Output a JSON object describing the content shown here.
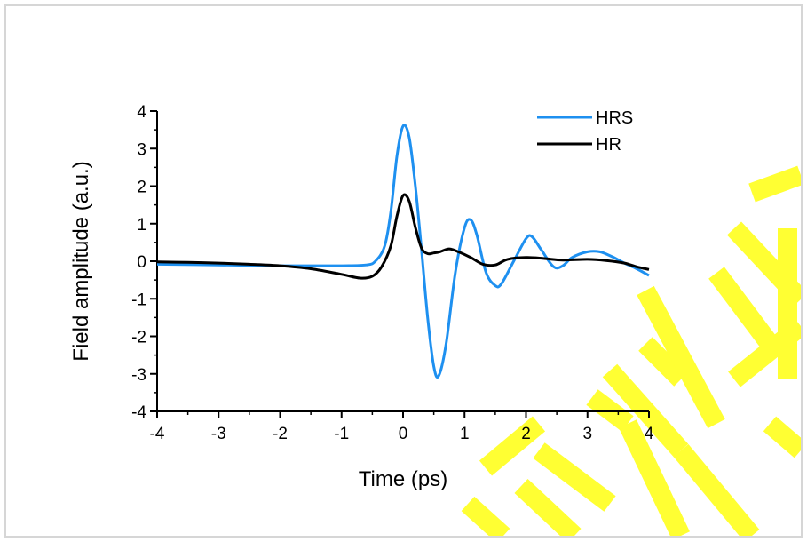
{
  "colors": {
    "HRS": "#1e90f0",
    "HR": "#000000",
    "watermark": "#ffff33"
  },
  "chart_data": {
    "type": "line",
    "title": "",
    "xlabel": "Time (ps)",
    "ylabel": "Field amplitude (a.u.)",
    "xlim": [
      -4,
      4
    ],
    "ylim": [
      -4,
      4
    ],
    "xticks": [
      "-4",
      "-3",
      "-2",
      "-1",
      "0",
      "1",
      "2",
      "3",
      "4"
    ],
    "yticks": [
      "-4",
      "-3",
      "-2",
      "-1",
      "0",
      "1",
      "2",
      "3",
      "4"
    ],
    "grid": false,
    "legend_position": "top-right",
    "series": [
      {
        "name": "HRS",
        "color": "#1e90f0",
        "x": [
          -4,
          -3,
          -2,
          -1.5,
          -1,
          -0.6,
          -0.45,
          -0.3,
          -0.2,
          -0.1,
          0,
          0.1,
          0.2,
          0.3,
          0.4,
          0.5,
          0.58,
          0.7,
          0.85,
          1.0,
          1.1,
          1.2,
          1.35,
          1.5,
          1.6,
          1.8,
          2.0,
          2.1,
          2.25,
          2.45,
          2.6,
          2.75,
          3.0,
          3.2,
          3.4,
          3.6,
          3.8,
          4.0
        ],
        "y": [
          -0.08,
          -0.1,
          -0.12,
          -0.12,
          -0.12,
          -0.1,
          0.0,
          0.4,
          1.3,
          2.8,
          3.6,
          3.3,
          2.0,
          0.3,
          -1.5,
          -2.8,
          -3.05,
          -2.2,
          -0.3,
          0.9,
          1.1,
          0.7,
          -0.3,
          -0.65,
          -0.6,
          0.0,
          0.6,
          0.65,
          0.3,
          -0.15,
          -0.12,
          0.1,
          0.25,
          0.25,
          0.12,
          -0.05,
          -0.2,
          -0.38
        ]
      },
      {
        "name": "HR",
        "color": "#000000",
        "x": [
          -4,
          -3.5,
          -3,
          -2.5,
          -2,
          -1.5,
          -1,
          -0.7,
          -0.5,
          -0.35,
          -0.2,
          -0.1,
          0,
          0.1,
          0.2,
          0.3,
          0.4,
          0.5,
          0.6,
          0.75,
          0.9,
          1.1,
          1.3,
          1.5,
          1.7,
          2.0,
          2.3,
          2.6,
          3.0,
          3.3,
          3.6,
          3.8,
          4.0
        ],
        "y": [
          -0.02,
          -0.03,
          -0.05,
          -0.08,
          -0.12,
          -0.2,
          -0.35,
          -0.45,
          -0.4,
          -0.15,
          0.4,
          1.2,
          1.75,
          1.6,
          0.9,
          0.35,
          0.2,
          0.22,
          0.25,
          0.33,
          0.25,
          0.1,
          -0.08,
          -0.1,
          0.05,
          0.1,
          0.07,
          0.03,
          0.05,
          0.02,
          -0.05,
          -0.15,
          -0.22
        ]
      }
    ]
  }
}
